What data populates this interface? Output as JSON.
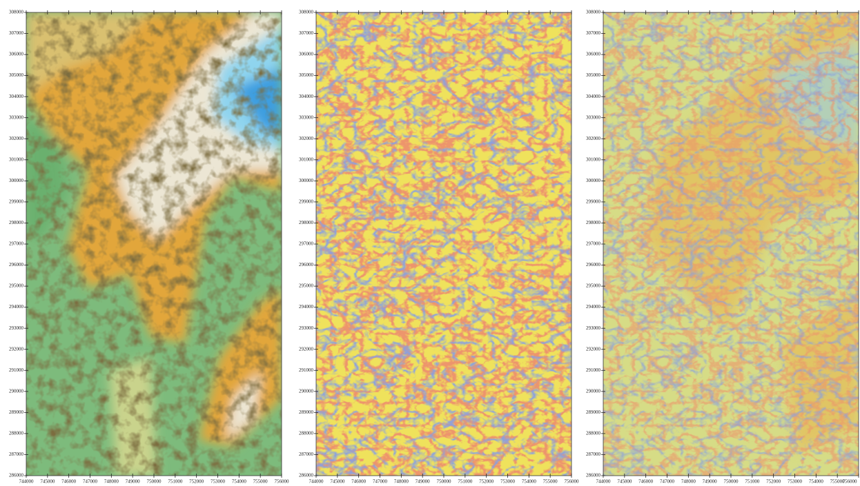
{
  "chart_data": [
    {
      "type": "map",
      "xlim": [
        744000,
        756000
      ],
      "ylim": [
        286000,
        308000
      ],
      "xticks": [
        744000,
        745000,
        746000,
        747000,
        748000,
        749000,
        750000,
        751000,
        752000,
        753000,
        754000,
        755000,
        756000
      ],
      "yticks": [
        286000,
        287000,
        288000,
        289000,
        290000,
        291000,
        292000,
        293000,
        294000,
        295000,
        296000,
        297000,
        298000,
        299000,
        300000,
        301000,
        302000,
        303000,
        304000,
        305000,
        306000,
        307000,
        308000
      ]
    },
    {
      "type": "map",
      "xlim": [
        744000,
        756000
      ],
      "ylim": [
        286000,
        308000
      ],
      "xticks": [
        744000,
        745000,
        746000,
        747000,
        748000,
        749000,
        750000,
        751000,
        752000,
        753000,
        754000,
        755000,
        756000
      ],
      "yticks": [
        286000,
        287000,
        288000,
        289000,
        290000,
        291000,
        292000,
        293000,
        294000,
        295000,
        296000,
        297000,
        298000,
        299000,
        300000,
        301000,
        302000,
        303000,
        304000,
        305000,
        306000,
        307000,
        308000
      ]
    },
    {
      "type": "map",
      "xlim": [
        744000,
        756000
      ],
      "ylim": [
        286000,
        308000
      ],
      "xticks": [
        744000,
        745000,
        746000,
        747000,
        748000,
        749000,
        750000,
        751000,
        752000,
        753000,
        754000,
        755000,
        756000
      ],
      "yticks": [
        286000,
        287000,
        288000,
        289000,
        290000,
        291000,
        292000,
        293000,
        294000,
        295000,
        296000,
        297000,
        298000,
        299000,
        300000,
        301000,
        302000,
        303000,
        304000,
        305000,
        306000,
        307000,
        308000
      ]
    }
  ]
}
